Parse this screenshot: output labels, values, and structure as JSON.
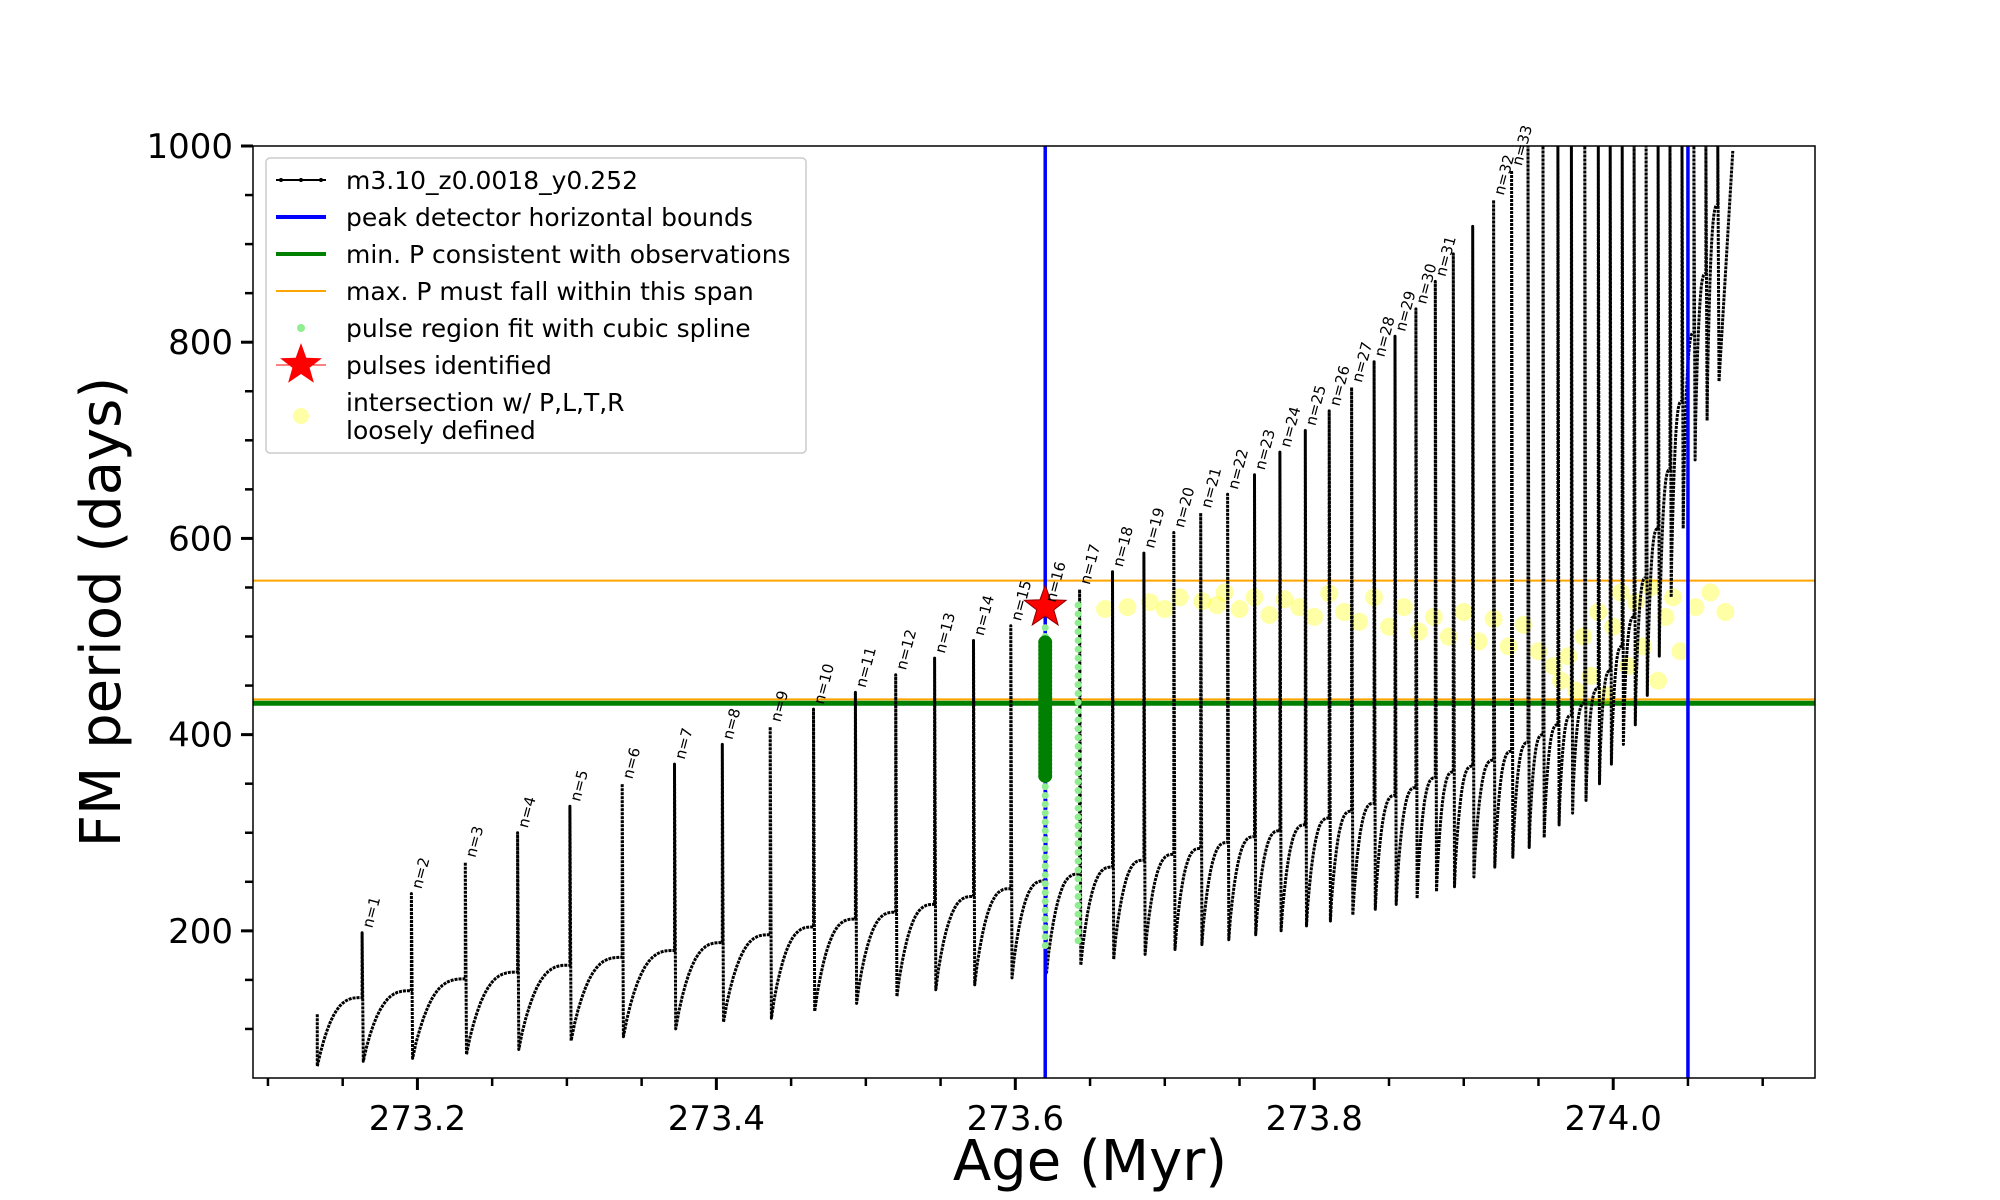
{
  "chart_data": {
    "type": "line",
    "title": "",
    "xlabel": "Age (Myr)",
    "ylabel": "FM period (days)",
    "xlim": [
      273.09,
      274.135
    ],
    "ylim": [
      50,
      1000
    ],
    "xticks": [
      273.2,
      273.4,
      273.6,
      273.8,
      274.0
    ],
    "xtick_labels": [
      "273.2",
      "273.4",
      "273.6",
      "273.8",
      "274.0"
    ],
    "yticks": [
      200,
      400,
      600,
      800,
      1000
    ],
    "ytick_labels": [
      "200",
      "400",
      "600",
      "800",
      "1000"
    ],
    "grid": false,
    "legend_position": "top-left",
    "colors": {
      "track": "#000000",
      "bounds": "#0000ff",
      "min_p": "#008000",
      "max_p": "#ffa500",
      "spline": "#90ee90",
      "star": "#ff0000",
      "loose": "#ffff00"
    },
    "legend": [
      {
        "key": "track",
        "label": "m3.10_z0.0018_y0.252",
        "marker": "line-dot"
      },
      {
        "key": "bounds",
        "label": "peak detector horizontal bounds",
        "marker": "line"
      },
      {
        "key": "min_p",
        "label": "min. P consistent with observations",
        "marker": "line"
      },
      {
        "key": "max_p",
        "label": "max. P must fall within this span",
        "marker": "line"
      },
      {
        "key": "spline",
        "label": "pulse region fit with cubic spline",
        "marker": "dot"
      },
      {
        "key": "star",
        "label": "pulses identified",
        "marker": "star"
      },
      {
        "key": "loose",
        "label": "intersection w/ P,L,T,R\nloosely defined",
        "marker": "circle"
      }
    ],
    "peak_detector_bounds": [
      273.62,
      274.05
    ],
    "min_p_line": 432,
    "max_p_span": [
      436,
      557
    ],
    "track_start": {
      "x": 273.133,
      "y": 62
    },
    "track_end": {
      "x": 274.08,
      "y": 995
    },
    "pulses": [
      {
        "n": 1,
        "x": 273.163,
        "peak": 198,
        "base": 132,
        "min": 67
      },
      {
        "n": 2,
        "x": 273.196,
        "peak": 238,
        "base": 139,
        "min": 70
      },
      {
        "n": 3,
        "x": 273.232,
        "peak": 270,
        "base": 151,
        "min": 74
      },
      {
        "n": 4,
        "x": 273.267,
        "peak": 300,
        "base": 158,
        "min": 79
      },
      {
        "n": 5,
        "x": 273.302,
        "peak": 327,
        "base": 165,
        "min": 88
      },
      {
        "n": 6,
        "x": 273.337,
        "peak": 350,
        "base": 173,
        "min": 92
      },
      {
        "n": 7,
        "x": 273.372,
        "peak": 370,
        "base": 180,
        "min": 100
      },
      {
        "n": 8,
        "x": 273.404,
        "peak": 390,
        "base": 188,
        "min": 107
      },
      {
        "n": 9,
        "x": 273.436,
        "peak": 408,
        "base": 196,
        "min": 111
      },
      {
        "n": 10,
        "x": 273.465,
        "peak": 426,
        "base": 204,
        "min": 118
      },
      {
        "n": 11,
        "x": 273.493,
        "peak": 443,
        "base": 212,
        "min": 126
      },
      {
        "n": 12,
        "x": 273.52,
        "peak": 461,
        "base": 219,
        "min": 133
      },
      {
        "n": 13,
        "x": 273.546,
        "peak": 478,
        "base": 227,
        "min": 140
      },
      {
        "n": 14,
        "x": 273.572,
        "peak": 496,
        "base": 235,
        "min": 145
      },
      {
        "n": 15,
        "x": 273.597,
        "peak": 511,
        "base": 243,
        "min": 152
      },
      {
        "n": 16,
        "x": 273.62,
        "peak": 530,
        "base": 251,
        "min": 156
      },
      {
        "n": 17,
        "x": 273.643,
        "peak": 548,
        "base": 258,
        "min": 165
      },
      {
        "n": 18,
        "x": 273.665,
        "peak": 566,
        "base": 265,
        "min": 171
      },
      {
        "n": 19,
        "x": 273.686,
        "peak": 585,
        "base": 272,
        "min": 176
      },
      {
        "n": 20,
        "x": 273.706,
        "peak": 606,
        "base": 278,
        "min": 181
      },
      {
        "n": 21,
        "x": 273.724,
        "peak": 626,
        "base": 284,
        "min": 186
      },
      {
        "n": 22,
        "x": 273.742,
        "peak": 645,
        "base": 290,
        "min": 191
      },
      {
        "n": 23,
        "x": 273.76,
        "peak": 665,
        "base": 296,
        "min": 196
      },
      {
        "n": 24,
        "x": 273.777,
        "peak": 688,
        "base": 302,
        "min": 200
      },
      {
        "n": 25,
        "x": 273.794,
        "peak": 710,
        "base": 308,
        "min": 205
      },
      {
        "n": 26,
        "x": 273.81,
        "peak": 730,
        "base": 315,
        "min": 210
      },
      {
        "n": 27,
        "x": 273.825,
        "peak": 754,
        "base": 322,
        "min": 216
      },
      {
        "n": 28,
        "x": 273.84,
        "peak": 780,
        "base": 330,
        "min": 222
      },
      {
        "n": 29,
        "x": 273.854,
        "peak": 806,
        "base": 338,
        "min": 227
      },
      {
        "n": 30,
        "x": 273.868,
        "peak": 834,
        "base": 346,
        "min": 233
      },
      {
        "n": 31,
        "x": 273.881,
        "peak": 862,
        "base": 356,
        "min": 240
      },
      {
        "n": 32,
        "x": 273.92,
        "peak": 945,
        "base": 374,
        "min": 265
      },
      {
        "n": 33,
        "x": 273.932,
        "peak": 975,
        "base": 383,
        "min": 275
      }
    ],
    "pulse_labels": [
      "n=1",
      "n=2",
      "n=3",
      "n=4",
      "n=5",
      "n=6",
      "n=7",
      "n=8",
      "n=9",
      "n=10",
      "n=11",
      "n=12",
      "n=13",
      "n=14",
      "n=15",
      "n=16",
      "n=17",
      "n=18",
      "n=19",
      "n=20",
      "n=21",
      "n=22",
      "n=23",
      "n=24",
      "n=25",
      "n=26",
      "n=27",
      "n=28",
      "n=29",
      "n=30",
      "n=31",
      "n=32",
      "n=33"
    ],
    "unlabeled_pulses": [
      {
        "x": 273.893,
        "peak": 890,
        "base": 362,
        "min": 245
      },
      {
        "x": 273.906,
        "peak": 918,
        "base": 368,
        "min": 255
      },
      {
        "x": 273.943,
        "peak": 1000,
        "base": 392,
        "min": 285
      },
      {
        "x": 273.953,
        "peak": 1000,
        "base": 400,
        "min": 295
      },
      {
        "x": 273.963,
        "peak": 1000,
        "base": 410,
        "min": 308
      },
      {
        "x": 273.972,
        "peak": 1000,
        "base": 420,
        "min": 320
      },
      {
        "x": 273.981,
        "peak": 1000,
        "base": 432,
        "min": 333
      },
      {
        "x": 273.99,
        "peak": 1000,
        "base": 447,
        "min": 350
      },
      {
        "x": 273.998,
        "peak": 1000,
        "base": 465,
        "min": 370
      },
      {
        "x": 274.006,
        "peak": 1000,
        "base": 490,
        "min": 390
      },
      {
        "x": 274.014,
        "peak": 1000,
        "base": 520,
        "min": 410
      },
      {
        "x": 274.022,
        "peak": 1000,
        "base": 560,
        "min": 440
      },
      {
        "x": 274.03,
        "peak": 1000,
        "base": 610,
        "min": 480
      },
      {
        "x": 274.038,
        "peak": 1000,
        "base": 670,
        "min": 540
      },
      {
        "x": 274.046,
        "peak": 1000,
        "base": 740,
        "min": 610
      },
      {
        "x": 274.054,
        "peak": 1000,
        "base": 810,
        "min": 680
      },
      {
        "x": 274.062,
        "peak": 1000,
        "base": 870,
        "min": 720
      },
      {
        "x": 274.07,
        "peak": 1000,
        "base": 940,
        "min": 760
      }
    ],
    "identified_pulse": {
      "x": 273.62,
      "y": 530,
      "label": "n=16"
    },
    "green_region": {
      "x": 273.62,
      "y_from": 358,
      "y_to": 495
    },
    "spline_segments": [
      {
        "x": 273.62,
        "y_from": 185,
        "y_to": 515
      },
      {
        "x": 273.642,
        "y_from": 190,
        "y_to": 540
      }
    ],
    "loose_points": [
      {
        "x": 273.66,
        "y": 528
      },
      {
        "x": 273.675,
        "y": 530
      },
      {
        "x": 273.69,
        "y": 535
      },
      {
        "x": 273.7,
        "y": 528
      },
      {
        "x": 273.71,
        "y": 540
      },
      {
        "x": 273.725,
        "y": 536
      },
      {
        "x": 273.735,
        "y": 532
      },
      {
        "x": 273.74,
        "y": 545
      },
      {
        "x": 273.75,
        "y": 528
      },
      {
        "x": 273.76,
        "y": 540
      },
      {
        "x": 273.77,
        "y": 522
      },
      {
        "x": 273.78,
        "y": 538
      },
      {
        "x": 273.79,
        "y": 530
      },
      {
        "x": 273.8,
        "y": 520
      },
      {
        "x": 273.81,
        "y": 544
      },
      {
        "x": 273.82,
        "y": 525
      },
      {
        "x": 273.83,
        "y": 515
      },
      {
        "x": 273.84,
        "y": 540
      },
      {
        "x": 273.85,
        "y": 510
      },
      {
        "x": 273.86,
        "y": 530
      },
      {
        "x": 273.87,
        "y": 505
      },
      {
        "x": 273.88,
        "y": 520
      },
      {
        "x": 273.89,
        "y": 500
      },
      {
        "x": 273.9,
        "y": 525
      },
      {
        "x": 273.91,
        "y": 495
      },
      {
        "x": 273.92,
        "y": 518
      },
      {
        "x": 273.93,
        "y": 490
      },
      {
        "x": 273.94,
        "y": 512
      },
      {
        "x": 273.95,
        "y": 485
      },
      {
        "x": 273.96,
        "y": 470
      },
      {
        "x": 273.965,
        "y": 455
      },
      {
        "x": 273.97,
        "y": 480
      },
      {
        "x": 273.975,
        "y": 445
      },
      {
        "x": 273.98,
        "y": 500
      },
      {
        "x": 273.985,
        "y": 460
      },
      {
        "x": 273.99,
        "y": 525
      },
      {
        "x": 273.995,
        "y": 440
      },
      {
        "x": 274.0,
        "y": 510
      },
      {
        "x": 274.005,
        "y": 545
      },
      {
        "x": 274.01,
        "y": 470
      },
      {
        "x": 274.015,
        "y": 535
      },
      {
        "x": 274.02,
        "y": 490
      },
      {
        "x": 274.025,
        "y": 550
      },
      {
        "x": 274.03,
        "y": 455
      },
      {
        "x": 274.035,
        "y": 520
      },
      {
        "x": 274.04,
        "y": 540
      },
      {
        "x": 274.045,
        "y": 485
      },
      {
        "x": 274.055,
        "y": 530
      },
      {
        "x": 274.065,
        "y": 545
      },
      {
        "x": 274.075,
        "y": 525
      }
    ]
  }
}
